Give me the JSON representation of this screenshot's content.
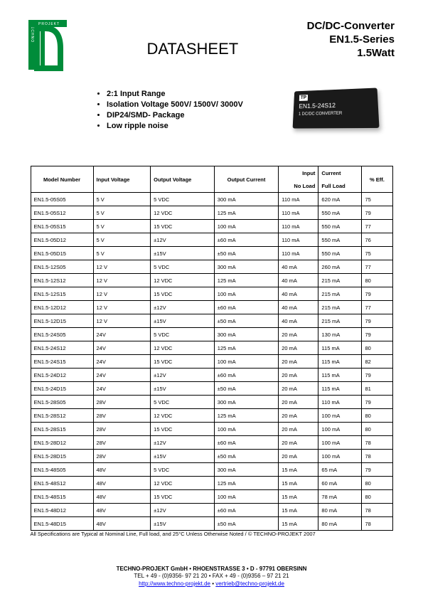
{
  "header": {
    "title": "DATASHEET",
    "right1": "DC/DC-Converter",
    "right2": "EN1.5-Series",
    "right3": "1.5Watt"
  },
  "logo": {
    "text_vertical": "TECHNO PROJEKT",
    "color_green": "#008c3a"
  },
  "features": [
    "2:1 Input Range",
    "Isolation Voltage 500V/ 1500V/ 3000V",
    "DIP24/SMD- Package",
    "Low ripple noise"
  ],
  "product": {
    "label": "EN1.5-24S12",
    "sublabel": "1   DC/DC CONVERTER"
  },
  "table": {
    "columns": [
      "Model Number",
      "Input Voltage",
      "Output Voltage",
      "Output Current",
      "Input No Load",
      "Current Full Load",
      "% Eff."
    ],
    "header_row1": [
      "Model Number",
      "Input Voltage",
      "Output Voltage",
      "Output Current",
      "Input",
      "Current",
      "% Eff."
    ],
    "header_row2_4": "No Load",
    "header_row2_5": "Full Load",
    "rows": [
      [
        "EN1.5-05S05",
        "5 V",
        "5 VDC",
        "300 mA",
        "110 mA",
        "620 mA",
        "75"
      ],
      [
        "EN1.5-05S12",
        "5 V",
        "12 VDC",
        "125 mA",
        "110 mA",
        "550 mA",
        "79"
      ],
      [
        "EN1.5-05S15",
        "5 V",
        "15 VDC",
        "100 mA",
        "110 mA",
        "550 mA",
        "77"
      ],
      [
        "EN1.5-05D12",
        "5 V",
        "±12V",
        "±60 mA",
        "110 mA",
        "550 mA",
        "76"
      ],
      [
        "EN1.5-05D15",
        "5 V",
        "±15V",
        "±50 mA",
        "110 mA",
        "550 mA",
        "75"
      ],
      [
        "EN1.5-12S05",
        "12 V",
        "5 VDC",
        "300 mA",
        "40 mA",
        "260 mA",
        "77"
      ],
      [
        "EN1.5-12S12",
        "12 V",
        "12 VDC",
        "125 mA",
        "40 mA",
        "215 mA",
        "80"
      ],
      [
        "EN1.5-12S15",
        "12 V",
        "15 VDC",
        "100 mA",
        "40 mA",
        "215 mA",
        "79"
      ],
      [
        "EN1.5-12D12",
        "12 V",
        "±12V",
        "±60 mA",
        "40 mA",
        "215 mA",
        "77"
      ],
      [
        "EN1.5-12D15",
        "12 V",
        "±15V",
        "±50 mA",
        "40 mA",
        "215 mA",
        "79"
      ],
      [
        "EN1.5-24S05",
        "24V",
        "5 VDC",
        "300 mA",
        "20 mA",
        "130 mA",
        "79"
      ],
      [
        "EN1.5-24S12",
        "24V",
        "12 VDC",
        "125 mA",
        "20 mA",
        "115 mA",
        "80"
      ],
      [
        "EN1.5-24S15",
        "24V",
        "15 VDC",
        "100 mA",
        "20 mA",
        "115 mA",
        "82"
      ],
      [
        "EN1.5-24D12",
        "24V",
        "±12V",
        "±60 mA",
        "20 mA",
        "115 mA",
        "79"
      ],
      [
        "EN1.5-24D15",
        "24V",
        "±15V",
        "±50 mA",
        "20 mA",
        "115 mA",
        "81"
      ],
      [
        "EN1.5-28S05",
        "28V",
        "5 VDC",
        "300 mA",
        "20 mA",
        "110 mA",
        "79"
      ],
      [
        "EN1.5-28S12",
        "28V",
        "12 VDC",
        "125 mA",
        "20 mA",
        "100 mA",
        "80"
      ],
      [
        "EN1.5-28S15",
        "28V",
        "15 VDC",
        "100 mA",
        "20 mA",
        "100 mA",
        "80"
      ],
      [
        "EN1.5-28D12",
        "28V",
        "±12V",
        "±60 mA",
        "20 mA",
        "100 mA",
        "78"
      ],
      [
        "EN1.5-28D15",
        "28V",
        "±15V",
        "±50 mA",
        "20 mA",
        "100 mA",
        "78"
      ],
      [
        "EN1.5-48S05",
        "48V",
        "5 VDC",
        "300 mA",
        "15 mA",
        "65 mA",
        "79"
      ],
      [
        "EN1.5-48S12",
        "48V",
        "12 VDC",
        "125 mA",
        "15 mA",
        "60 mA",
        "80"
      ],
      [
        "EN1.5-48S15",
        "48V",
        "15 VDC",
        "100 mA",
        "15 mA",
        "78 mA",
        "80"
      ],
      [
        "EN1.5-48D12",
        "48V",
        "±12V",
        "±60 mA",
        "15 mA",
        "80 mA",
        "78"
      ],
      [
        "EN1.5-48D15",
        "48V",
        "±15V",
        "±50 mA",
        "15 mA",
        "80 mA",
        "78"
      ]
    ]
  },
  "spec_note": "All Specifications are Typical at Nominal Line, Full load, and 25°C Unless Otherwise Noted / © TECHNO-PROJEKT 2007",
  "footer": {
    "line1": "TECHNO-PROJEKT GmbH     •     RHOENSTRASSE 3     •     D - 97791 OBERSINN",
    "line2": "TEL + 49 - (0)9356- 97 21 20     •     FAX + 49 - (0)9356 – 97 21 21",
    "link1": "http://www.techno-projekt.de",
    "link2": "vertrieb@techno-projekt.de",
    "bullet": "•"
  }
}
